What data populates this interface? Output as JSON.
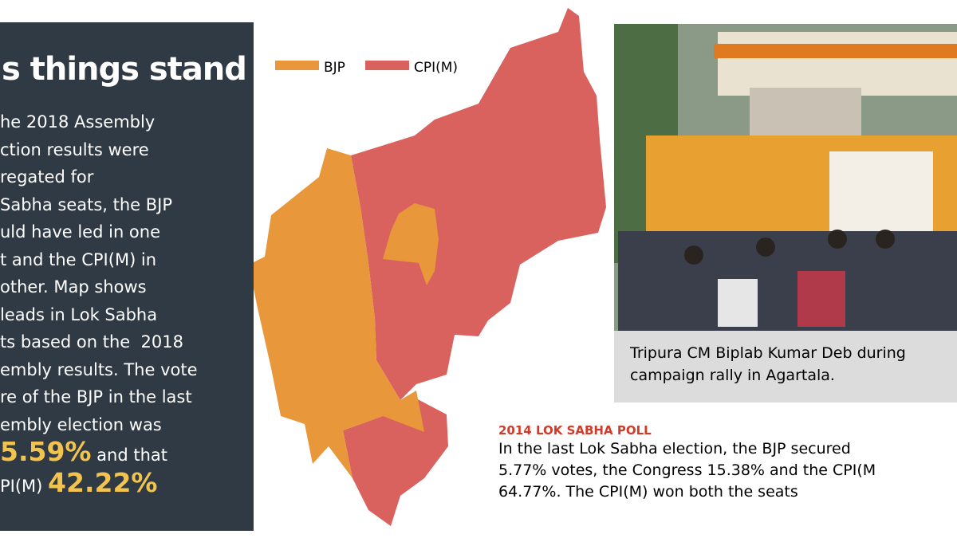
{
  "sidebar": {
    "title": "s things stand",
    "lines": [
      "he 2018 Assembly",
      "ction results were",
      "regated for",
      "Sabha seats, the BJP",
      "uld have led in one",
      "t and the CPI(M) in",
      "other. Map shows",
      "leads in Lok Sabha",
      "ts based on the  2018",
      "embly results. The vote",
      "re of the BJP in the last",
      "embly election was"
    ],
    "bjp_share": "5.59%",
    "and_that": " and that",
    "cpim_prefix": "PI(M) ",
    "cpim_share": "42.22%"
  },
  "map": {
    "legend": [
      {
        "name": "BJP",
        "color": "#e8973a"
      },
      {
        "name": "CPI(M)",
        "color": "#d9625e"
      }
    ]
  },
  "photo": {
    "caption": [
      "Tripura CM Biplab Kumar Deb during",
      "campaign rally in Agartala."
    ]
  },
  "poll": {
    "title": "2014 LOK SABHA POLL",
    "lines": [
      "In the last Lok Sabha election, the BJP secured",
      "5.77% votes, the Congress 15.38% and the CPI(M",
      "64.77%. The CPI(M) won both the seats"
    ]
  }
}
